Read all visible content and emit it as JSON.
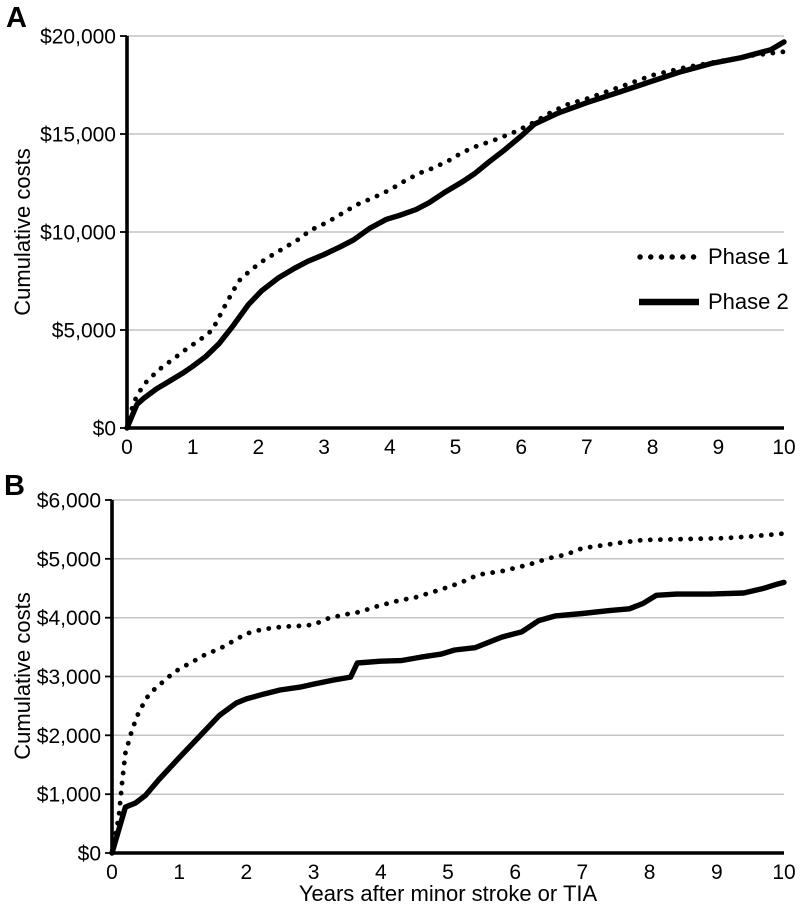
{
  "chart_data": [
    {
      "type": "line",
      "panel_label": "A",
      "title": "",
      "xlabel": "",
      "ylabel": "Cumulative costs",
      "xlim": [
        0,
        10
      ],
      "ylim": [
        0,
        20000
      ],
      "grid": "horizontal",
      "xticks": [
        0,
        1,
        2,
        3,
        4,
        5,
        6,
        7,
        8,
        9,
        10
      ],
      "yticks": [
        0,
        5000,
        10000,
        15000,
        20000
      ],
      "ytick_labels": [
        "$0",
        "$5,000",
        "$10,000",
        "$15,000",
        "$20,000"
      ],
      "legend": {
        "position": "right-middle",
        "entries": [
          {
            "label": "Phase 1",
            "style": "dotted"
          },
          {
            "label": "Phase 2",
            "style": "solid"
          }
        ]
      },
      "series": [
        {
          "name": "Phase 1",
          "style": "dotted",
          "points": [
            [
              0,
              0
            ],
            [
              0.1,
              1300
            ],
            [
              0.25,
              2200
            ],
            [
              0.4,
              2700
            ],
            [
              0.55,
              3150
            ],
            [
              0.7,
              3500
            ],
            [
              0.85,
              3900
            ],
            [
              1,
              4250
            ],
            [
              1.15,
              4600
            ],
            [
              1.3,
              5000
            ],
            [
              1.5,
              6300
            ],
            [
              1.7,
              7500
            ],
            [
              1.9,
              8100
            ],
            [
              2.1,
              8600
            ],
            [
              2.35,
              9100
            ],
            [
              2.6,
              9600
            ],
            [
              2.8,
              10100
            ],
            [
              3.05,
              10500
            ],
            [
              3.3,
              11000
            ],
            [
              3.5,
              11400
            ],
            [
              3.75,
              11750
            ],
            [
              4,
              12150
            ],
            [
              4.2,
              12550
            ],
            [
              4.45,
              13000
            ],
            [
              4.65,
              13250
            ],
            [
              4.9,
              13650
            ],
            [
              5.1,
              14050
            ],
            [
              5.3,
              14350
            ],
            [
              5.6,
              14700
            ],
            [
              5.9,
              15100
            ],
            [
              6.2,
              15600
            ],
            [
              6.45,
              16100
            ],
            [
              6.7,
              16500
            ],
            [
              7,
              16800
            ],
            [
              7.5,
              17400
            ],
            [
              8,
              18000
            ],
            [
              8.5,
              18400
            ],
            [
              9,
              18700
            ],
            [
              9.5,
              19000
            ],
            [
              10,
              19200
            ]
          ]
        },
        {
          "name": "Phase 2",
          "style": "solid",
          "points": [
            [
              0,
              0
            ],
            [
              0.15,
              1200
            ],
            [
              0.25,
              1500
            ],
            [
              0.45,
              2000
            ],
            [
              0.65,
              2400
            ],
            [
              0.85,
              2800
            ],
            [
              1,
              3150
            ],
            [
              1.2,
              3650
            ],
            [
              1.4,
              4300
            ],
            [
              1.6,
              5150
            ],
            [
              1.85,
              6300
            ],
            [
              2.05,
              7000
            ],
            [
              2.3,
              7650
            ],
            [
              2.55,
              8150
            ],
            [
              2.75,
              8500
            ],
            [
              3,
              8850
            ],
            [
              3.25,
              9250
            ],
            [
              3.45,
              9600
            ],
            [
              3.7,
              10200
            ],
            [
              3.95,
              10650
            ],
            [
              4.15,
              10850
            ],
            [
              4.4,
              11150
            ],
            [
              4.6,
              11500
            ],
            [
              4.85,
              12050
            ],
            [
              5.1,
              12550
            ],
            [
              5.3,
              13000
            ],
            [
              5.5,
              13550
            ],
            [
              5.75,
              14200
            ],
            [
              6,
              14900
            ],
            [
              6.2,
              15500
            ],
            [
              6.55,
              16050
            ],
            [
              7,
              16600
            ],
            [
              7.5,
              17150
            ],
            [
              7.95,
              17650
            ],
            [
              8.4,
              18150
            ],
            [
              8.9,
              18600
            ],
            [
              9.35,
              18900
            ],
            [
              9.8,
              19300
            ],
            [
              10,
              19700
            ]
          ]
        }
      ]
    },
    {
      "type": "line",
      "panel_label": "B",
      "title": "",
      "xlabel": "Years after minor stroke or TIA",
      "ylabel": "Cumulative costs",
      "xlim": [
        0,
        10
      ],
      "ylim": [
        0,
        6000
      ],
      "grid": "horizontal",
      "xticks": [
        0,
        1,
        2,
        3,
        4,
        5,
        6,
        7,
        8,
        9,
        10
      ],
      "yticks": [
        0,
        1000,
        2000,
        3000,
        4000,
        5000,
        6000
      ],
      "ytick_labels": [
        "$0",
        "$1,000",
        "$2,000",
        "$3,000",
        "$4,000",
        "$5,000",
        "$6,000"
      ],
      "series": [
        {
          "name": "Phase 1",
          "style": "dotted",
          "points": [
            [
              0,
              0
            ],
            [
              0.1,
              600
            ],
            [
              0.15,
              1200
            ],
            [
              0.2,
              1700
            ],
            [
              0.3,
              2100
            ],
            [
              0.4,
              2400
            ],
            [
              0.55,
              2700
            ],
            [
              0.7,
              2850
            ],
            [
              0.85,
              3000
            ],
            [
              1,
              3130
            ],
            [
              1.2,
              3250
            ],
            [
              1.4,
              3380
            ],
            [
              1.6,
              3470
            ],
            [
              1.8,
              3600
            ],
            [
              2,
              3730
            ],
            [
              2.2,
              3790
            ],
            [
              2.4,
              3830
            ],
            [
              2.6,
              3850
            ],
            [
              2.8,
              3860
            ],
            [
              3,
              3880
            ],
            [
              3.2,
              3980
            ],
            [
              3.45,
              4050
            ],
            [
              3.7,
              4100
            ],
            [
              3.9,
              4180
            ],
            [
              4.1,
              4240
            ],
            [
              4.3,
              4300
            ],
            [
              4.5,
              4340
            ],
            [
              4.7,
              4410
            ],
            [
              4.9,
              4480
            ],
            [
              5.2,
              4600
            ],
            [
              5.45,
              4730
            ],
            [
              5.8,
              4790
            ],
            [
              6.2,
              4900
            ],
            [
              6.5,
              5010
            ],
            [
              6.75,
              5070
            ],
            [
              7,
              5180
            ],
            [
              7.3,
              5230
            ],
            [
              7.6,
              5280
            ],
            [
              7.9,
              5320
            ],
            [
              8.3,
              5330
            ],
            [
              8.7,
              5340
            ],
            [
              9.1,
              5350
            ],
            [
              9.5,
              5380
            ],
            [
              10,
              5430
            ]
          ]
        },
        {
          "name": "Phase 2",
          "style": "solid",
          "points": [
            [
              0,
              0
            ],
            [
              0.2,
              780
            ],
            [
              0.35,
              850
            ],
            [
              0.5,
              980
            ],
            [
              0.7,
              1250
            ],
            [
              1,
              1620
            ],
            [
              1.3,
              1980
            ],
            [
              1.6,
              2340
            ],
            [
              1.85,
              2550
            ],
            [
              2,
              2620
            ],
            [
              2.25,
              2700
            ],
            [
              2.5,
              2770
            ],
            [
              2.8,
              2820
            ],
            [
              3,
              2870
            ],
            [
              3.3,
              2940
            ],
            [
              3.55,
              2990
            ],
            [
              3.65,
              3230
            ],
            [
              4,
              3260
            ],
            [
              4.3,
              3270
            ],
            [
              4.6,
              3330
            ],
            [
              4.9,
              3380
            ],
            [
              5.1,
              3450
            ],
            [
              5.4,
              3490
            ],
            [
              5.8,
              3670
            ],
            [
              6.1,
              3760
            ],
            [
              6.35,
              3950
            ],
            [
              6.6,
              4030
            ],
            [
              7,
              4070
            ],
            [
              7.4,
              4120
            ],
            [
              7.7,
              4150
            ],
            [
              7.9,
              4240
            ],
            [
              8.1,
              4380
            ],
            [
              8.4,
              4400
            ],
            [
              8.9,
              4400
            ],
            [
              9.4,
              4420
            ],
            [
              9.7,
              4500
            ],
            [
              9.9,
              4570
            ],
            [
              10,
              4600
            ]
          ]
        }
      ]
    }
  ]
}
